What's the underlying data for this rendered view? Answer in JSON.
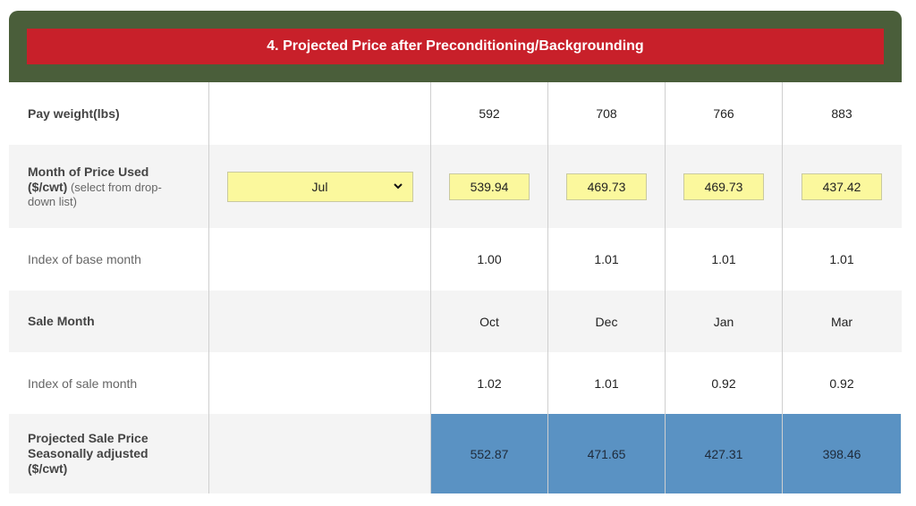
{
  "title": "4. Projected Price after Preconditioning/Backgrounding",
  "rows": {
    "pay_weight": {
      "label": "Pay weight(lbs)",
      "values": [
        "592",
        "708",
        "766",
        "883"
      ]
    },
    "month_price": {
      "label_line1": "Month of Price Used",
      "label_line2_bold": "($/cwt)",
      "label_line2_note": " (select from drop-",
      "label_line3": "down list)",
      "selected_month": "Jul",
      "values": [
        "539.94",
        "469.73",
        "469.73",
        "437.42"
      ]
    },
    "index_base": {
      "label": "Index of base month",
      "values": [
        "1.00",
        "1.01",
        "1.01",
        "1.01"
      ]
    },
    "sale_month": {
      "label": "Sale Month",
      "values": [
        "Oct",
        "Dec",
        "Jan",
        "Mar"
      ]
    },
    "index_sale": {
      "label": "Index of sale month",
      "values": [
        "1.02",
        "1.01",
        "0.92",
        "0.92"
      ]
    },
    "projected": {
      "label_line1": "Projected Sale Price",
      "label_line2": "Seasonally adjusted",
      "label_line3": "($/cwt)",
      "values": [
        "552.87",
        "471.65",
        "427.31",
        "398.46"
      ]
    }
  },
  "colors": {
    "header": "#4a5e3a",
    "title_bar": "#c8202a",
    "input": "#fbf89d",
    "result": "#5a92c3"
  }
}
